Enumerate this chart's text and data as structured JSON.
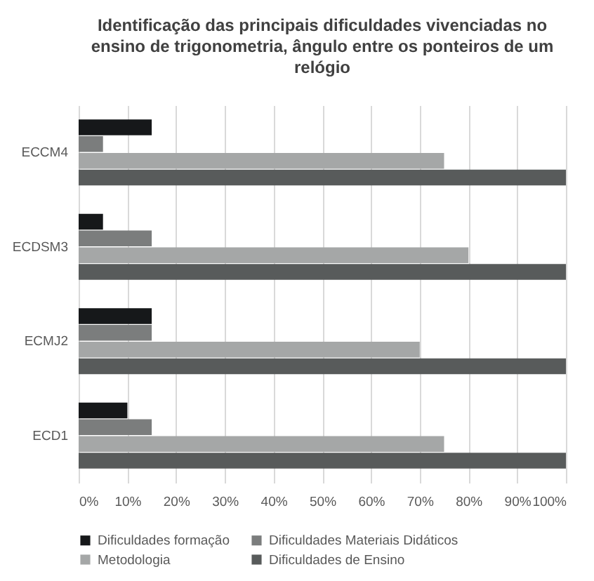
{
  "chart_data": {
    "type": "bar",
    "orientation": "horizontal",
    "title": "Identificação das principais dificuldades vivenciadas no ensino de trigonometria, ângulo entre os ponteiros de um relógio",
    "categories": [
      "ECCM4",
      "ECDSM3",
      "ECMJ2",
      "ECD1"
    ],
    "series": [
      {
        "name": "Dificuldades formação",
        "color": "#16181a",
        "values": [
          15,
          5,
          15,
          10
        ]
      },
      {
        "name": "Dificuldades Materiais Didáticos",
        "color": "#7b7d7d",
        "values": [
          5,
          15,
          15,
          15
        ]
      },
      {
        "name": "Metodologia",
        "color": "#a5a7a7",
        "values": [
          75,
          80,
          70,
          75
        ]
      },
      {
        "name": "Dificuldades de Ensino",
        "color": "#585b5b",
        "values": [
          100,
          100,
          100,
          100
        ]
      }
    ],
    "xlim": [
      0,
      100
    ],
    "xticks": [
      {
        "value": 0,
        "label": "0%"
      },
      {
        "value": 10,
        "label": "10%"
      },
      {
        "value": 20,
        "label": "20%"
      },
      {
        "value": 30,
        "label": "30%"
      },
      {
        "value": 40,
        "label": "40%"
      },
      {
        "value": 50,
        "label": "50%"
      },
      {
        "value": 60,
        "label": "60%"
      },
      {
        "value": 70,
        "label": "70%"
      },
      {
        "value": 80,
        "label": "80%"
      },
      {
        "value": 90,
        "label": "90%"
      },
      {
        "value": 100,
        "label": "100%"
      }
    ],
    "grid": "x",
    "legend": "bottom"
  }
}
